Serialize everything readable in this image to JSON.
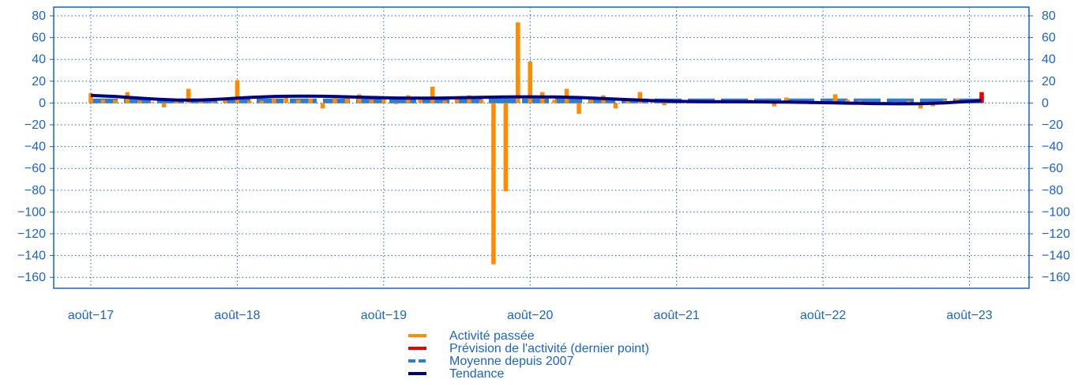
{
  "chart_data": {
    "type": "bar",
    "title": "",
    "ylim": [
      -170,
      88
    ],
    "yticks": [
      80,
      60,
      40,
      20,
      0,
      -20,
      -40,
      -60,
      -80,
      -100,
      -120,
      -140,
      -160
    ],
    "ytick_labels": [
      "80",
      "60",
      "40",
      "20",
      "0",
      "−20",
      "−40",
      "−60",
      "−80",
      "−100",
      "−120",
      "−140",
      "−160"
    ],
    "xticks": [
      {
        "label": "août−17",
        "index": 0
      },
      {
        "label": "août−18",
        "index": 12
      },
      {
        "label": "août−19",
        "index": 24
      },
      {
        "label": "août−20",
        "index": 36
      },
      {
        "label": "août−21",
        "index": 48
      },
      {
        "label": "août−22",
        "index": 60
      },
      {
        "label": "août−23",
        "index": 72
      }
    ],
    "x_count": 74,
    "grid": true,
    "legend_placement": "bottom-center",
    "series": [
      {
        "name": "Activité passée",
        "kind": "bar",
        "color": "#ff8c00",
        "values": [
          9,
          3,
          3,
          10,
          2,
          1,
          -4,
          2,
          13,
          2,
          1,
          3,
          21,
          2,
          2,
          4,
          5,
          3,
          4,
          -5,
          5,
          7,
          8,
          3,
          4,
          -1,
          7,
          3,
          15,
          2,
          5,
          7,
          3,
          -148,
          -81,
          74,
          38,
          10,
          3,
          13,
          -10,
          3,
          7,
          -5,
          2,
          10,
          3,
          -2,
          2,
          1,
          1,
          2,
          1,
          1,
          3,
          2,
          -3,
          5,
          1,
          -1,
          2,
          8,
          3,
          2,
          1,
          1,
          1,
          2,
          -5,
          -3,
          3,
          4,
          2,
          6
        ]
      },
      {
        "name": "Prévision de l'activité (dernier point)",
        "kind": "bar",
        "color": "#ee0000",
        "values": [
          null,
          null,
          null,
          null,
          null,
          null,
          null,
          null,
          null,
          null,
          null,
          null,
          null,
          null,
          null,
          null,
          null,
          null,
          null,
          null,
          null,
          null,
          null,
          null,
          null,
          null,
          null,
          null,
          null,
          null,
          null,
          null,
          null,
          null,
          null,
          null,
          null,
          null,
          null,
          null,
          null,
          null,
          null,
          null,
          null,
          null,
          null,
          null,
          null,
          null,
          null,
          null,
          null,
          null,
          null,
          null,
          null,
          null,
          null,
          null,
          null,
          null,
          null,
          null,
          null,
          null,
          null,
          null,
          null,
          null,
          null,
          null,
          null,
          10
        ]
      },
      {
        "name": "Moyenne depuis 2007",
        "kind": "dashed-line",
        "color": "#2a7fd4",
        "values": [
          2,
          2,
          2,
          2,
          2,
          2,
          2,
          2,
          2,
          2,
          2,
          2,
          2,
          2,
          2,
          2,
          2,
          2,
          2,
          2,
          2,
          2,
          2,
          2,
          2,
          2,
          2,
          2,
          2,
          2,
          2,
          2,
          2,
          2,
          2,
          2,
          2,
          2,
          2,
          2,
          2,
          2,
          2,
          2,
          2,
          2,
          2,
          2,
          2,
          2,
          2,
          2,
          2,
          2,
          2,
          2,
          2,
          2,
          2,
          2,
          2,
          2,
          2,
          2,
          2,
          2,
          2,
          2,
          2,
          2,
          2,
          2,
          2,
          2
        ]
      },
      {
        "name": "Tendance",
        "kind": "line",
        "color": "#000080",
        "values": [
          7,
          6.5,
          6,
          5.2,
          4.5,
          3.8,
          3.2,
          2.8,
          2.6,
          2.8,
          3.2,
          3.8,
          4.5,
          5.1,
          5.6,
          6,
          6.2,
          6.3,
          6.3,
          6.2,
          6,
          5.7,
          5.4,
          5.1,
          4.8,
          4.6,
          4.5,
          4.5,
          4.5,
          4.6,
          4.8,
          5,
          5.2,
          5.4,
          5.6,
          5.7,
          5.7,
          5.6,
          5.5,
          5.3,
          5,
          4.6,
          4.1,
          3.6,
          3.1,
          2.6,
          2.2,
          1.9,
          1.6,
          1.4,
          1.3,
          1.2,
          1.2,
          1.2,
          1.1,
          1,
          0.9,
          0.8,
          0.7,
          0.5,
          0.3,
          0.1,
          -0.1,
          -0.3,
          -0.5,
          -0.6,
          -0.7,
          -0.7,
          -0.6,
          -0.3,
          0.2,
          0.8,
          1.5,
          2.2
        ]
      }
    ]
  }
}
